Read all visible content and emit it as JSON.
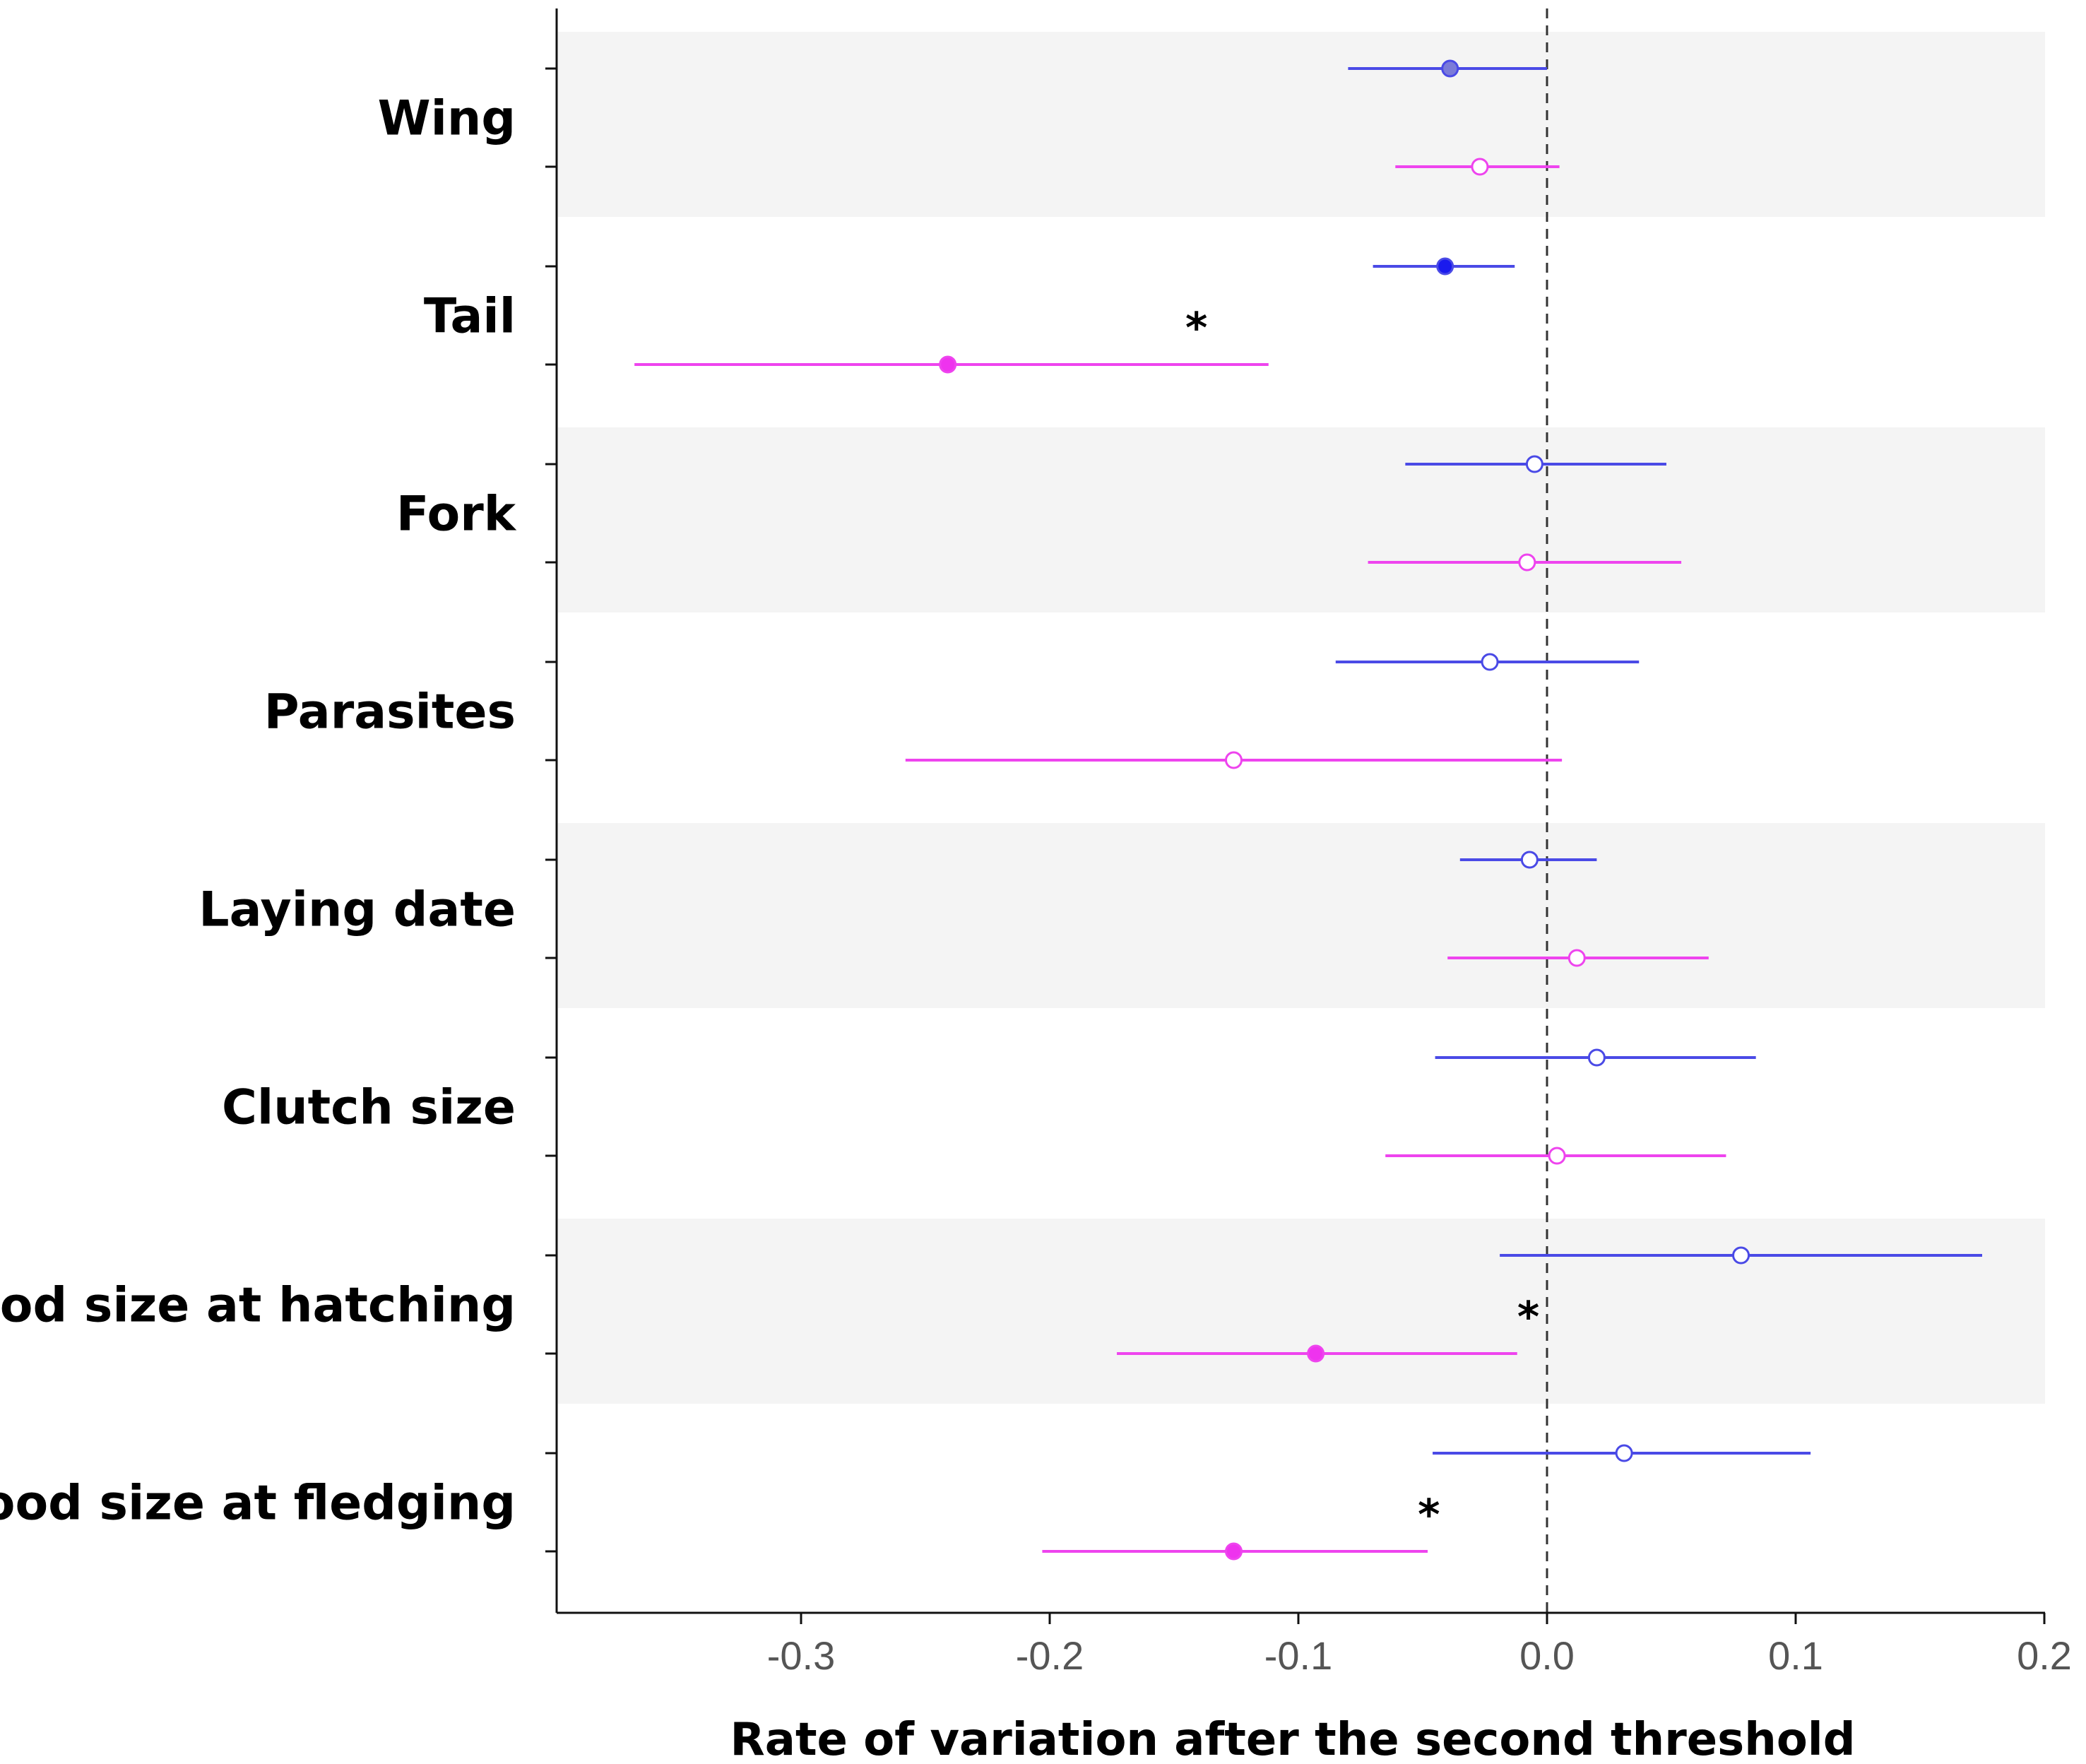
{
  "chart_data": {
    "type": "forest",
    "title": "",
    "xlabel": "Rate of variation after the second threshold",
    "ylabel": "",
    "xlim": [
      -0.395,
      0.2
    ],
    "xticks": [
      "-0.3",
      "-0.2",
      "-0.1",
      "0.0",
      "0.1",
      "0.2"
    ],
    "xtick_values": [
      -0.3,
      -0.2,
      -0.1,
      0.0,
      0.1,
      0.2
    ],
    "reference_line": 0.0,
    "series_colors": {
      "blue": "#4a4ae6",
      "magenta": "#ee44ee"
    },
    "categories": [
      {
        "label": "Wing",
        "star": false,
        "blue": {
          "est": -0.039,
          "lo": -0.08,
          "hi": 0.0,
          "filled": true,
          "fill": "#7b7bd8"
        },
        "magenta": {
          "est": -0.027,
          "lo": -0.061,
          "hi": 0.005,
          "filled": false
        }
      },
      {
        "label": "Tail",
        "star": true,
        "blue": {
          "est": -0.041,
          "lo": -0.07,
          "hi": -0.013,
          "filled": true,
          "fill": "#1a1aee"
        },
        "magenta": {
          "est": -0.241,
          "lo": -0.367,
          "hi": -0.112,
          "filled": true,
          "fill": "#ee33ee"
        }
      },
      {
        "label": "Fork",
        "star": false,
        "blue": {
          "est": -0.005,
          "lo": -0.057,
          "hi": 0.048,
          "filled": false
        },
        "magenta": {
          "est": -0.008,
          "lo": -0.072,
          "hi": 0.054,
          "filled": false
        }
      },
      {
        "label": "Parasites",
        "star": false,
        "blue": {
          "est": -0.023,
          "lo": -0.085,
          "hi": 0.037,
          "filled": false
        },
        "magenta": {
          "est": -0.126,
          "lo": -0.258,
          "hi": 0.006,
          "filled": false
        }
      },
      {
        "label": "Laying date",
        "star": false,
        "blue": {
          "est": -0.007,
          "lo": -0.035,
          "hi": 0.02,
          "filled": false
        },
        "magenta": {
          "est": 0.012,
          "lo": -0.04,
          "hi": 0.065,
          "filled": false
        }
      },
      {
        "label": "Clutch size",
        "star": false,
        "blue": {
          "est": 0.02,
          "lo": -0.045,
          "hi": 0.084,
          "filled": false
        },
        "magenta": {
          "est": 0.004,
          "lo": -0.065,
          "hi": 0.072,
          "filled": false
        }
      },
      {
        "label": "Brood size at hatching",
        "star": true,
        "blue": {
          "est": 0.078,
          "lo": -0.019,
          "hi": 0.175,
          "filled": false
        },
        "magenta": {
          "est": -0.093,
          "lo": -0.173,
          "hi": -0.012,
          "filled": true,
          "fill": "#ee33ee"
        }
      },
      {
        "label": "Brood size at fledging",
        "star": true,
        "blue": {
          "est": 0.031,
          "lo": -0.046,
          "hi": 0.106,
          "filled": false
        },
        "magenta": {
          "est": -0.126,
          "lo": -0.203,
          "hi": -0.048,
          "filled": true,
          "fill": "#ee33ee"
        }
      }
    ],
    "star_symbol": "*",
    "band_color": "#f4f4f4"
  }
}
